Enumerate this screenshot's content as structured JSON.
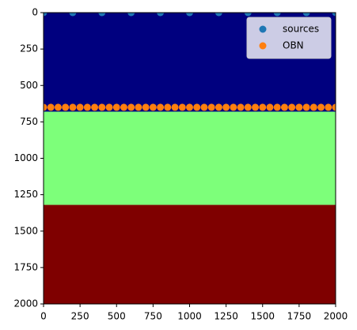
{
  "chart_data": {
    "type": "scatter",
    "layers": [
      {
        "top": 0,
        "bottom": 680,
        "color": "#00007f"
      },
      {
        "top": 680,
        "bottom": 1320,
        "color": "#7dff7a"
      },
      {
        "top": 1320,
        "bottom": 2000,
        "color": "#7f0000"
      }
    ],
    "series": [
      {
        "name": "sources",
        "color": "#1f77b4",
        "x": [
          0,
          200,
          400,
          600,
          800,
          1000,
          1200,
          1400,
          1600,
          1800,
          2000
        ],
        "y": [
          0,
          0,
          0,
          0,
          0,
          0,
          0,
          0,
          0,
          0,
          0
        ]
      },
      {
        "name": "OBN",
        "color": "#ff7f0e",
        "x": [
          0,
          50,
          100,
          150,
          200,
          250,
          300,
          350,
          400,
          450,
          500,
          550,
          600,
          650,
          700,
          750,
          800,
          850,
          900,
          950,
          1000,
          1050,
          1100,
          1150,
          1200,
          1250,
          1300,
          1350,
          1400,
          1450,
          1500,
          1550,
          1600,
          1650,
          1700,
          1750,
          1800,
          1850,
          1900,
          1950,
          2000
        ],
        "y": [
          650,
          650,
          650,
          650,
          650,
          650,
          650,
          650,
          650,
          650,
          650,
          650,
          650,
          650,
          650,
          650,
          650,
          650,
          650,
          650,
          650,
          650,
          650,
          650,
          650,
          650,
          650,
          650,
          650,
          650,
          650,
          650,
          650,
          650,
          650,
          650,
          650,
          650,
          650,
          650,
          650
        ]
      }
    ],
    "xlim": [
      0,
      2000
    ],
    "ylim": [
      2000,
      0
    ],
    "xticks": [
      0,
      250,
      500,
      750,
      1000,
      1250,
      1500,
      1750,
      2000
    ],
    "yticks": [
      0,
      250,
      500,
      750,
      1000,
      1250,
      1500,
      1750,
      2000
    ],
    "legend": "upper right"
  }
}
